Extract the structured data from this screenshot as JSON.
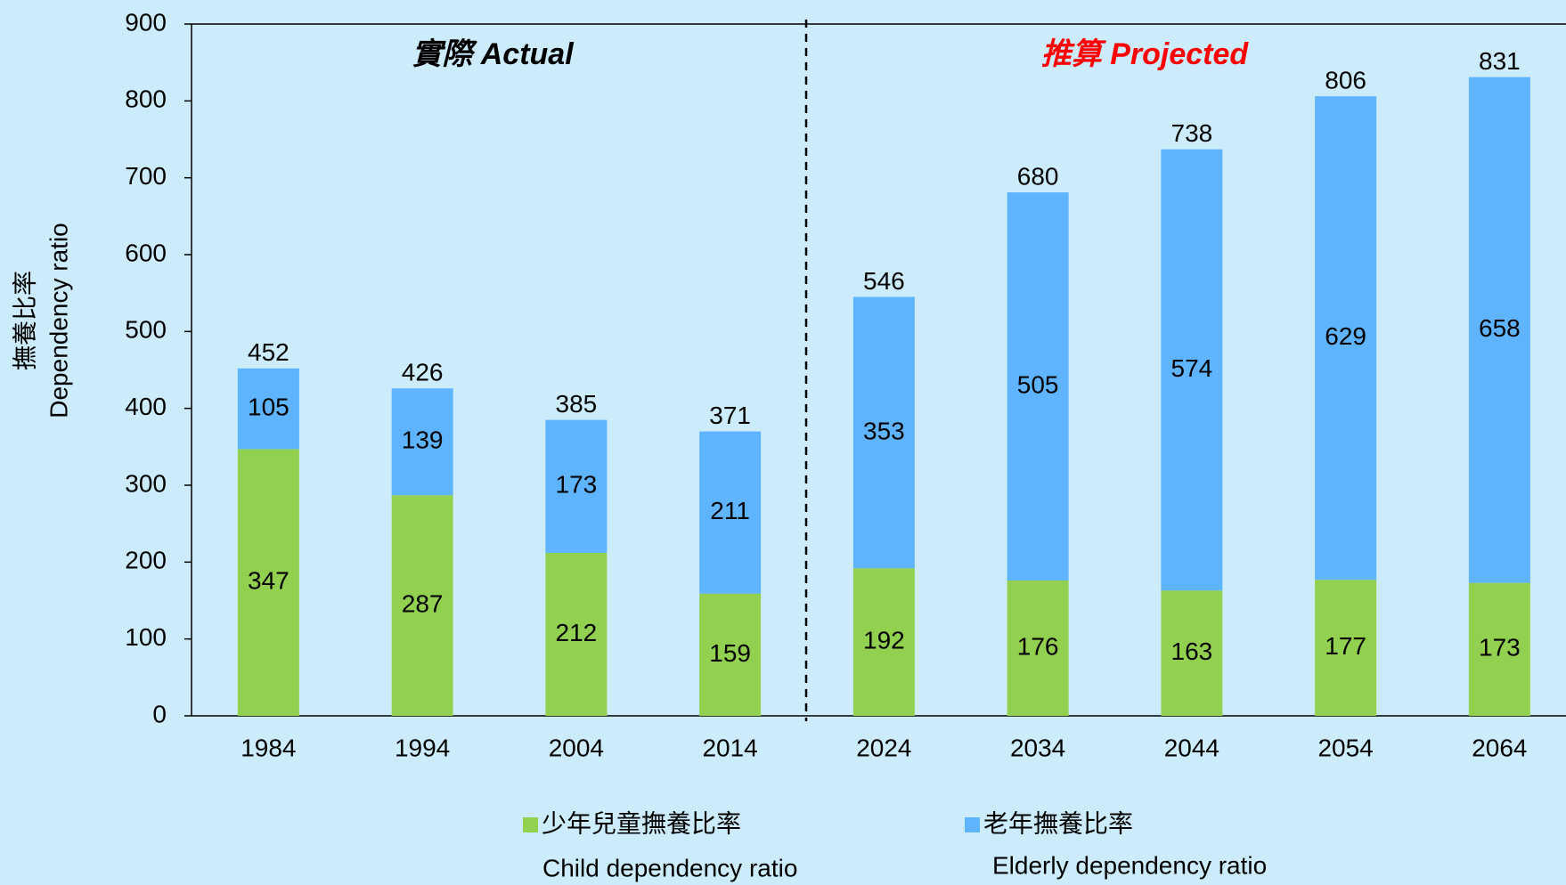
{
  "chart_data": {
    "type": "stacked_bar",
    "ylabel": [
      "撫養比率",
      "Dependency ratio"
    ],
    "annotations": [
      "實際 Actual",
      "推算 Projected"
    ],
    "categories": [
      "1984",
      "1994",
      "2004",
      "2014",
      "2024",
      "2034",
      "2044",
      "2054",
      "2064"
    ],
    "series": [
      {
        "name": "少年兒童撫養比率",
        "name_en": "Child dependency ratio",
        "color": "#92d050",
        "values": [
          347,
          287,
          212,
          159,
          192,
          176,
          163,
          177,
          173
        ]
      },
      {
        "name": "老年撫養比率",
        "name_en": "Elderly dependency ratio",
        "color": "#5eb4ff",
        "values": [
          105,
          139,
          173,
          211,
          353,
          505,
          574,
          629,
          658
        ]
      }
    ],
    "totals": [
      452,
      426,
      385,
      371,
      546,
      680,
      738,
      806,
      831
    ],
    "ylim": [
      0,
      900
    ],
    "yticks": [
      0,
      100,
      200,
      300,
      400,
      500,
      600,
      700,
      800,
      900
    ],
    "grid": false
  }
}
